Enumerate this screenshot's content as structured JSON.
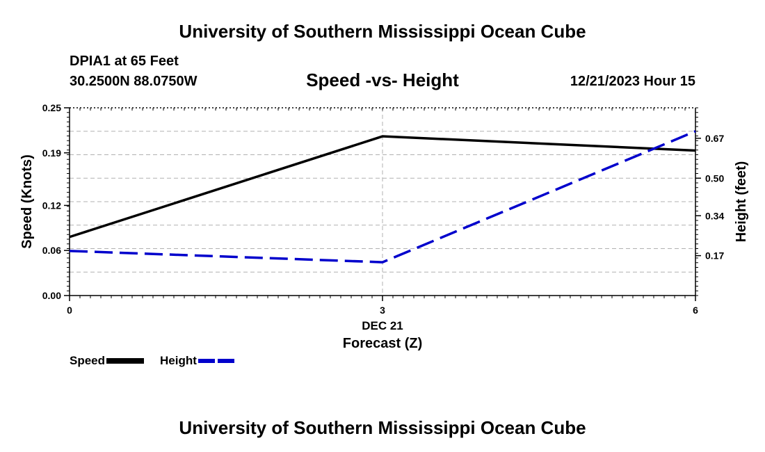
{
  "header": {
    "title": "University of Southern Mississippi Ocean Cube",
    "station": "DPIA1 at 65 Feet",
    "coordinates": "30.2500N  88.0750W",
    "subtitle": "Speed -vs- Height",
    "datetime": "12/21/2023 Hour 15"
  },
  "footer": {
    "title": "University of Southern Mississippi Ocean Cube"
  },
  "legend": {
    "speed_label": "Speed",
    "height_label": "Height"
  },
  "chart_data": {
    "type": "line",
    "title": "Speed -vs- Height",
    "xlabel": "Forecast (Z)",
    "x_date_label": "DEC 21",
    "x": [
      0,
      3,
      6
    ],
    "x_ticks": [
      "0",
      "3",
      "6"
    ],
    "xlim": [
      0,
      6
    ],
    "ylabel_left": "Speed (Knots)",
    "ylim_left": [
      0,
      0.25
    ],
    "y_ticks_left": [
      "0.00",
      "0.06",
      "0.12",
      "0.19",
      "0.25"
    ],
    "ylabel_right": "Height (feet)",
    "ylim_right": [
      0,
      0.8
    ],
    "y_ticks_right": [
      "0.17",
      "0.34",
      "0.50",
      "0.67"
    ],
    "grid": true,
    "legend_position": "bottom-left",
    "series": [
      {
        "name": "Speed",
        "axis": "left",
        "color": "#000000",
        "style": "solid",
        "values": [
          0.078,
          0.212,
          0.193
        ]
      },
      {
        "name": "Height",
        "axis": "right",
        "color": "#0000cc",
        "style": "dashed",
        "values": [
          0.19,
          0.142,
          0.7
        ]
      }
    ]
  }
}
